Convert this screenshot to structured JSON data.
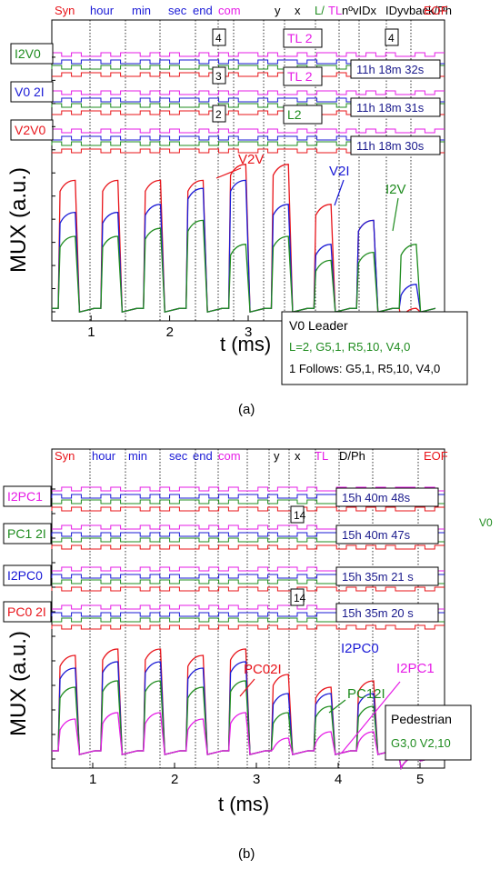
{
  "colors": {
    "red": "#e8141a",
    "blue": "#1a1ad6",
    "green": "#1f8c1f",
    "magenta": "#e61ce6",
    "black": "#000000",
    "darkblue": "#1a1a8c"
  },
  "panels": [
    {
      "caption": "(a)",
      "header": [
        {
          "text": "Syn",
          "color": "red"
        },
        {
          "text": "hour",
          "color": "blue"
        },
        {
          "text": "min",
          "color": "blue"
        },
        {
          "text": "sec",
          "color": "blue"
        },
        {
          "text": "end",
          "color": "blue"
        },
        {
          "text": "com",
          "color": "magenta"
        },
        {
          "text": "y",
          "color": "black"
        },
        {
          "text": "x",
          "color": "black"
        },
        {
          "text": "L/",
          "color": "green"
        },
        {
          "text": "TL",
          "color": "magenta"
        },
        {
          "text": "nºvIDx",
          "color": "black"
        },
        {
          "text": "IDyvback/Ph",
          "color": "black"
        },
        {
          "text": "EOF",
          "color": "red"
        }
      ],
      "rows": [
        {
          "label": "I2V0",
          "color": "green",
          "time": "11h 18m 32s",
          "box": "4",
          "box2": "4",
          "tl": "TL 2"
        },
        {
          "label": "V0 2I",
          "color": "blue",
          "time": "11h 18m 31s",
          "box": "3",
          "tl": "TL 2"
        },
        {
          "label": "V2V0",
          "color": "red",
          "time": "11h 18m 30s",
          "box": "2",
          "tl": "L2"
        }
      ],
      "annotations": [
        "V2V",
        "V2I",
        "I2V"
      ],
      "legend": [
        "V0 Leader",
        "L=2, G5,1, R5,10, V4,0",
        "1 Follows: G5,1, R5,10, V4,0"
      ],
      "ylabel": "MUX (a.u.)",
      "xlabel": "t (ms)"
    },
    {
      "caption": "(b)",
      "header": [
        {
          "text": "Syn",
          "color": "red"
        },
        {
          "text": "hour",
          "color": "blue"
        },
        {
          "text": "min",
          "color": "blue"
        },
        {
          "text": "sec",
          "color": "blue"
        },
        {
          "text": "end",
          "color": "blue"
        },
        {
          "text": "com",
          "color": "magenta"
        },
        {
          "text": "y",
          "color": "black"
        },
        {
          "text": "x",
          "color": "black"
        },
        {
          "text": "TL",
          "color": "magenta"
        },
        {
          "text": "D/Ph",
          "color": "black"
        },
        {
          "text": "EOF",
          "color": "red"
        }
      ],
      "rows": [
        {
          "label": "I2PC1",
          "color": "magenta",
          "time": "15h 40m 48s"
        },
        {
          "label": "PC1 2I",
          "color": "green",
          "time": "15h 40m 47s",
          "box": "14"
        },
        {
          "label": "I2PC0",
          "color": "blue",
          "time": "15h 35m 21 s"
        },
        {
          "label": "PC0 2I",
          "color": "red",
          "time": "15h 35m 20 s",
          "box": "14"
        }
      ],
      "annotations": [
        "PC02I",
        "I2PC0",
        "PC12I",
        "I2PC1"
      ],
      "legend": [
        "Pedestrian",
        "G3,0 V2,10"
      ],
      "ylabel": "MUX (a.u.)",
      "xlabel": "t (ms)",
      "side_label": "V0"
    }
  ],
  "chart_data": [
    {
      "type": "line",
      "title": "",
      "xlabel": "t (ms)",
      "ylabel": "MUX (a.u.)",
      "xlim": [
        0.5,
        5.5
      ],
      "xticks": [
        1,
        2,
        3
      ],
      "series": [
        {
          "name": "V2V",
          "color": "red",
          "values": [
            0.05,
            0.85,
            0.05,
            0.85,
            0.05,
            0.85,
            0.05,
            0.85,
            0.05,
            0.95,
            0.05,
            0.95,
            0.05,
            0.7,
            0.05,
            0.6,
            0.05,
            0.05
          ]
        },
        {
          "name": "V2I",
          "color": "blue",
          "values": [
            0.05,
            0.65,
            0.05,
            0.65,
            0.05,
            0.7,
            0.05,
            0.8,
            0.05,
            0.85,
            0.05,
            0.7,
            0.05,
            0.45,
            0.05,
            0.6,
            0.05,
            0.2
          ]
        },
        {
          "name": "I2V",
          "color": "green",
          "values": [
            0.05,
            0.5,
            0.05,
            0.5,
            0.05,
            0.55,
            0.05,
            0.6,
            0.05,
            0.45,
            0.05,
            0.5,
            0.05,
            0.35,
            0.05,
            0.4,
            0.05,
            0.45
          ]
        }
      ]
    },
    {
      "type": "line",
      "title": "",
      "xlabel": "t (ms)",
      "ylabel": "MUX (a.u.)",
      "xlim": [
        0.5,
        5.3
      ],
      "xticks": [
        1,
        2,
        3,
        4,
        5
      ],
      "series": [
        {
          "name": "PC02I",
          "color": "red",
          "values": [
            0.1,
            0.85,
            0.1,
            0.9,
            0.1,
            0.9,
            0.1,
            0.85,
            0.1,
            0.9,
            0.1,
            0.7,
            0.1,
            0.6,
            0.1,
            0.65,
            0.05,
            0.05
          ]
        },
        {
          "name": "I2PC0",
          "color": "blue",
          "values": [
            0.1,
            0.75,
            0.1,
            0.8,
            0.1,
            0.8,
            0.1,
            0.75,
            0.1,
            0.8,
            0.1,
            0.55,
            0.1,
            0.55,
            0.1,
            0.55,
            0.05,
            0.05
          ]
        },
        {
          "name": "PC12I",
          "color": "green",
          "values": [
            0.1,
            0.6,
            0.1,
            0.65,
            0.1,
            0.65,
            0.1,
            0.6,
            0.1,
            0.65,
            0.1,
            0.4,
            0.1,
            0.45,
            0.1,
            0.45,
            0.05,
            0.05
          ]
        },
        {
          "name": "I2PC1",
          "color": "magenta",
          "values": [
            0.1,
            0.35,
            0.1,
            0.4,
            0.1,
            0.4,
            0.1,
            0.35,
            0.1,
            0.4,
            0.1,
            0.2,
            0.1,
            0.25,
            0.1,
            0.25,
            0.05,
            0.05
          ]
        }
      ]
    }
  ]
}
